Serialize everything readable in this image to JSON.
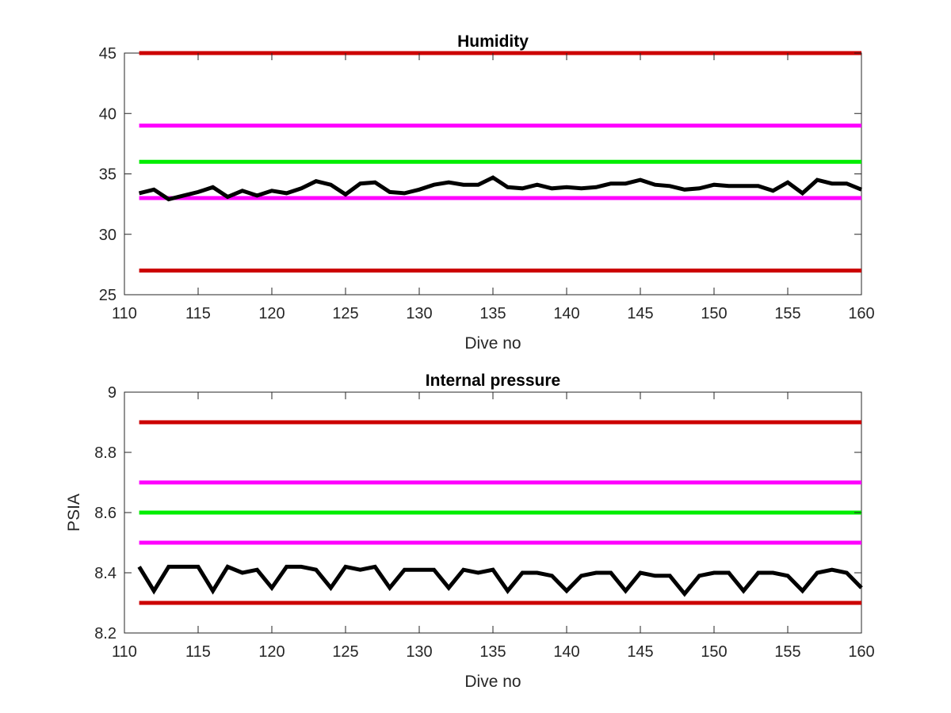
{
  "chart_data": [
    {
      "type": "line",
      "title": "Humidity",
      "xlabel": "Dive no",
      "ylabel": "",
      "xlim": [
        110,
        160
      ],
      "ylim": [
        25,
        45
      ],
      "xticks": [
        110,
        115,
        120,
        125,
        130,
        135,
        140,
        145,
        150,
        155,
        160
      ],
      "yticks": [
        25,
        30,
        35,
        40,
        45
      ],
      "grid": false,
      "reference_lines": [
        {
          "y": 45,
          "color": "#cc0000"
        },
        {
          "y": 39,
          "color": "#ff00ff"
        },
        {
          "y": 36,
          "color": "#00ee00"
        },
        {
          "y": 33,
          "color": "#ff00ff"
        },
        {
          "y": 27,
          "color": "#cc0000"
        }
      ],
      "series": [
        {
          "color": "#000000",
          "x": [
            111,
            112,
            113,
            114,
            115,
            116,
            117,
            118,
            119,
            120,
            121,
            122,
            123,
            124,
            125,
            126,
            127,
            128,
            129,
            130,
            131,
            132,
            133,
            134,
            135,
            136,
            137,
            138,
            139,
            140,
            141,
            142,
            143,
            144,
            145,
            146,
            147,
            148,
            149,
            150,
            151,
            152,
            153,
            154,
            155,
            156,
            157,
            158,
            159,
            160
          ],
          "values": [
            33.4,
            33.7,
            32.9,
            33.2,
            33.5,
            33.9,
            33.1,
            33.6,
            33.2,
            33.6,
            33.4,
            33.8,
            34.4,
            34.1,
            33.3,
            34.2,
            34.3,
            33.5,
            33.4,
            33.7,
            34.1,
            34.3,
            34.1,
            34.1,
            34.7,
            33.9,
            33.8,
            34.1,
            33.8,
            33.9,
            33.8,
            33.9,
            34.2,
            34.2,
            34.5,
            34.1,
            34.0,
            33.7,
            33.8,
            34.1,
            34.0,
            34.0,
            34.0,
            33.6,
            34.3,
            33.4,
            34.5,
            34.2,
            34.2,
            33.7
          ]
        }
      ]
    },
    {
      "type": "line",
      "title": "Internal pressure",
      "xlabel": "Dive no",
      "ylabel": "PSIA",
      "xlim": [
        110,
        160
      ],
      "ylim": [
        8.2,
        9
      ],
      "xticks": [
        110,
        115,
        120,
        125,
        130,
        135,
        140,
        145,
        150,
        155,
        160
      ],
      "yticks": [
        8.2,
        8.4,
        8.6,
        8.8,
        9
      ],
      "grid": false,
      "reference_lines": [
        {
          "y": 8.9,
          "color": "#cc0000"
        },
        {
          "y": 8.7,
          "color": "#ff00ff"
        },
        {
          "y": 8.6,
          "color": "#00ee00"
        },
        {
          "y": 8.5,
          "color": "#ff00ff"
        },
        {
          "y": 8.3,
          "color": "#cc0000"
        }
      ],
      "series": [
        {
          "color": "#000000",
          "x": [
            111,
            112,
            113,
            114,
            115,
            116,
            117,
            118,
            119,
            120,
            121,
            122,
            123,
            124,
            125,
            126,
            127,
            128,
            129,
            130,
            131,
            132,
            133,
            134,
            135,
            136,
            137,
            138,
            139,
            140,
            141,
            142,
            143,
            144,
            145,
            146,
            147,
            148,
            149,
            150,
            151,
            152,
            153,
            154,
            155,
            156,
            157,
            158,
            159,
            160
          ],
          "values": [
            8.42,
            8.34,
            8.42,
            8.42,
            8.42,
            8.34,
            8.42,
            8.4,
            8.41,
            8.35,
            8.42,
            8.42,
            8.41,
            8.35,
            8.42,
            8.41,
            8.42,
            8.35,
            8.41,
            8.41,
            8.41,
            8.35,
            8.41,
            8.4,
            8.41,
            8.34,
            8.4,
            8.4,
            8.39,
            8.34,
            8.39,
            8.4,
            8.4,
            8.34,
            8.4,
            8.39,
            8.39,
            8.33,
            8.39,
            8.4,
            8.4,
            8.34,
            8.4,
            8.4,
            8.39,
            8.34,
            8.4,
            8.41,
            8.4,
            8.35
          ]
        }
      ]
    }
  ]
}
